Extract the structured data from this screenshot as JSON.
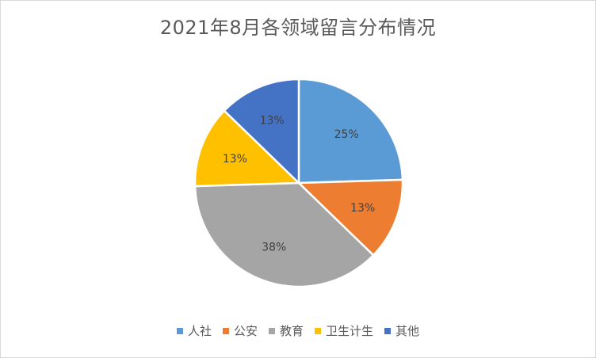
{
  "chart_data": {
    "type": "pie",
    "title": "2021年8月各领域留言分布情况",
    "categories": [
      "人社",
      "公安",
      "教育",
      "卫生计生",
      "其他"
    ],
    "values": [
      25,
      13,
      38,
      13,
      13
    ],
    "labels": [
      "25%",
      "13%",
      "38%",
      "13%",
      "13%"
    ],
    "colors": [
      "#5b9bd5",
      "#ed7d31",
      "#a5a5a5",
      "#ffc000",
      "#4472c4"
    ],
    "legend": "bottom"
  }
}
